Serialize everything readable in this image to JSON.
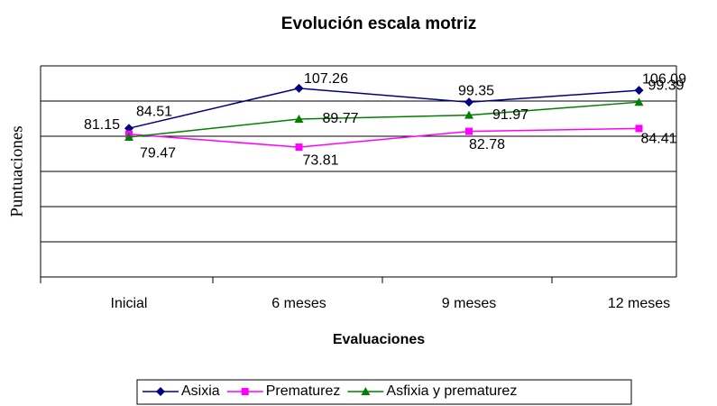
{
  "chart_data": {
    "type": "line",
    "title": "Evolución escala motriz",
    "x_label": "Evaluaciones",
    "y_label": "Puntuaciones",
    "categories": [
      "Inicial",
      "6 meses",
      "9 meses",
      "12 meses"
    ],
    "series": [
      {
        "name": "Asixia",
        "color": "#000080",
        "marker": "diamond",
        "values": [
          84.51,
          107.26,
          99.35,
          106.09
        ]
      },
      {
        "name": "Prematurez",
        "color": "#ff00ff",
        "marker": "square",
        "values": [
          81.15,
          73.81,
          82.78,
          84.41
        ]
      },
      {
        "name": "Asfixia y prematurez",
        "color": "#008000",
        "marker": "triangle",
        "values": [
          79.47,
          89.77,
          91.97,
          99.39
        ]
      }
    ],
    "ylim": [
      0,
      120
    ],
    "yticks": [
      0,
      20,
      40,
      60,
      80,
      100,
      120
    ],
    "grid": true,
    "legend": "bottom"
  }
}
